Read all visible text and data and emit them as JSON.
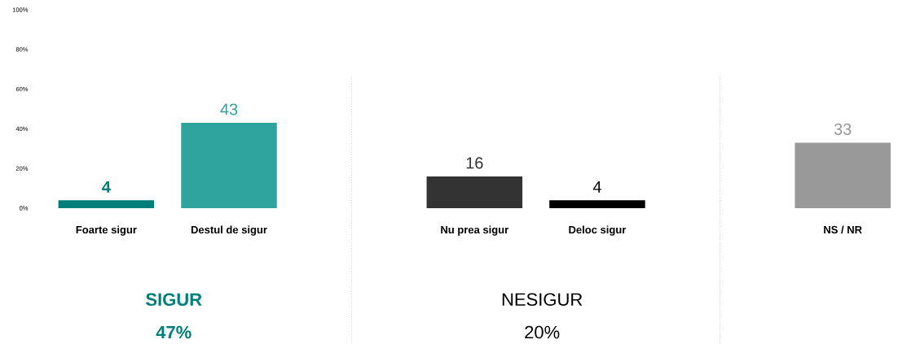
{
  "chart_data": {
    "type": "bar",
    "categories": [
      "Foarte sigur",
      "Destul de sigur",
      null,
      "Nu prea sigur",
      "Deloc sigur",
      null,
      "NS / NR"
    ],
    "values": [
      4,
      43,
      null,
      16,
      4,
      null,
      33
    ],
    "colors": [
      "#007f7a",
      "#2fa39d",
      "#ffffff",
      "#333333",
      "#000000",
      "#ffffff",
      "#999999"
    ],
    "value_labels": [
      "**4**",
      "43",
      null,
      "16",
      "4",
      null,
      "33"
    ],
    "ylim": [
      0,
      100
    ],
    "yticks": [
      {
        "value": 0,
        "label": "0%"
      },
      {
        "value": 20,
        "label": "20%"
      },
      {
        "value": 40,
        "label": "40%"
      },
      {
        "value": 60,
        "label": "60%"
      },
      {
        "value": 80,
        "label": "80%"
      },
      {
        "value": 100,
        "label": "100%"
      }
    ],
    "annotations": [
      "SIGUR",
      "47%",
      "NESIGUR",
      "20%"
    ]
  }
}
